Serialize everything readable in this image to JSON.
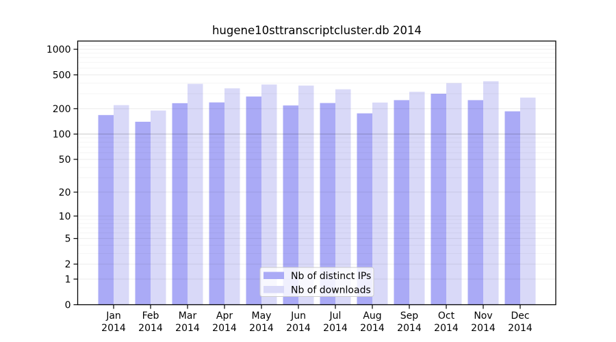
{
  "chart_data": {
    "type": "bar",
    "title": "hugene10sttranscriptcluster.db 2014",
    "categories": [
      "Jan",
      "Feb",
      "Mar",
      "Apr",
      "May",
      "Jun",
      "Jul",
      "Aug",
      "Sep",
      "Oct",
      "Nov",
      "Dec"
    ],
    "x_tick_second_line": "2014",
    "series": [
      {
        "name": "Nb of distinct IPs",
        "color": "#aaaaf6",
        "values": [
          168,
          140,
          232,
          237,
          278,
          218,
          233,
          176,
          252,
          300,
          252,
          186
        ]
      },
      {
        "name": "Nb of downloads",
        "color": "#d9d9f8",
        "values": [
          220,
          190,
          392,
          347,
          385,
          374,
          338,
          236,
          316,
          400,
          421,
          270
        ]
      }
    ],
    "y_axis": {
      "scale": "log10(value+1)",
      "ticks": [
        0,
        1,
        2,
        5,
        10,
        20,
        50,
        100,
        200,
        500,
        1000
      ],
      "range": [
        0,
        1250
      ]
    },
    "grid": {
      "major": true,
      "minor": true
    },
    "legend": {
      "position": "bottom-center"
    },
    "colors": {
      "axis": "#000000",
      "grid_major": "rgba(0,0,0,0.08)",
      "grid_minor": "rgba(0,0,0,0.045)",
      "grid_emphasis_100": "rgba(0,0,0,0.22)",
      "legend_border": "#cccccc",
      "legend_fill": "rgba(255,255,255,0.82)"
    }
  }
}
